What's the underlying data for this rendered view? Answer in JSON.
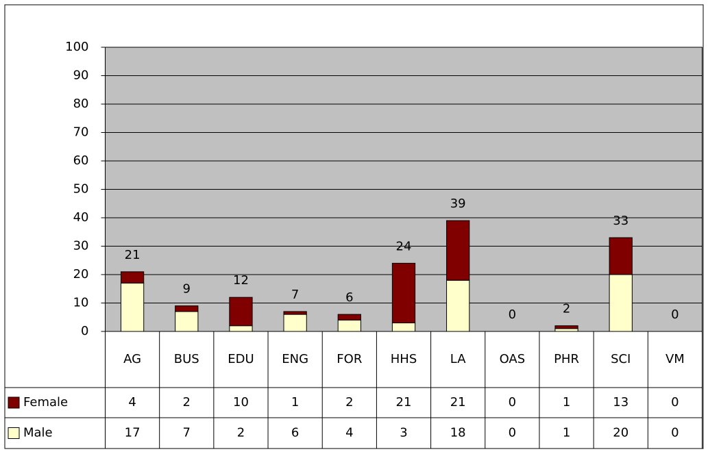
{
  "chart_data": {
    "type": "bar",
    "stacked": true,
    "categories": [
      "AG",
      "BUS",
      "EDU",
      "ENG",
      "FOR",
      "HHS",
      "LA",
      "OAS",
      "PHR",
      "SCI",
      "VM"
    ],
    "series": [
      {
        "name": "Female",
        "color": "#800000",
        "values": [
          4,
          2,
          10,
          1,
          2,
          21,
          21,
          0,
          1,
          13,
          0
        ]
      },
      {
        "name": "Male",
        "color": "#ffffcc",
        "values": [
          17,
          7,
          2,
          6,
          4,
          3,
          18,
          0,
          1,
          20,
          0
        ]
      }
    ],
    "totals": [
      21,
      9,
      12,
      7,
      6,
      24,
      39,
      0,
      2,
      33,
      0
    ],
    "ylim": [
      0,
      100
    ],
    "yticks": [
      0,
      10,
      20,
      30,
      40,
      50,
      60,
      70,
      80,
      90,
      100
    ],
    "grid": true,
    "data_table": true,
    "plot_background": "#c0c0c0"
  }
}
